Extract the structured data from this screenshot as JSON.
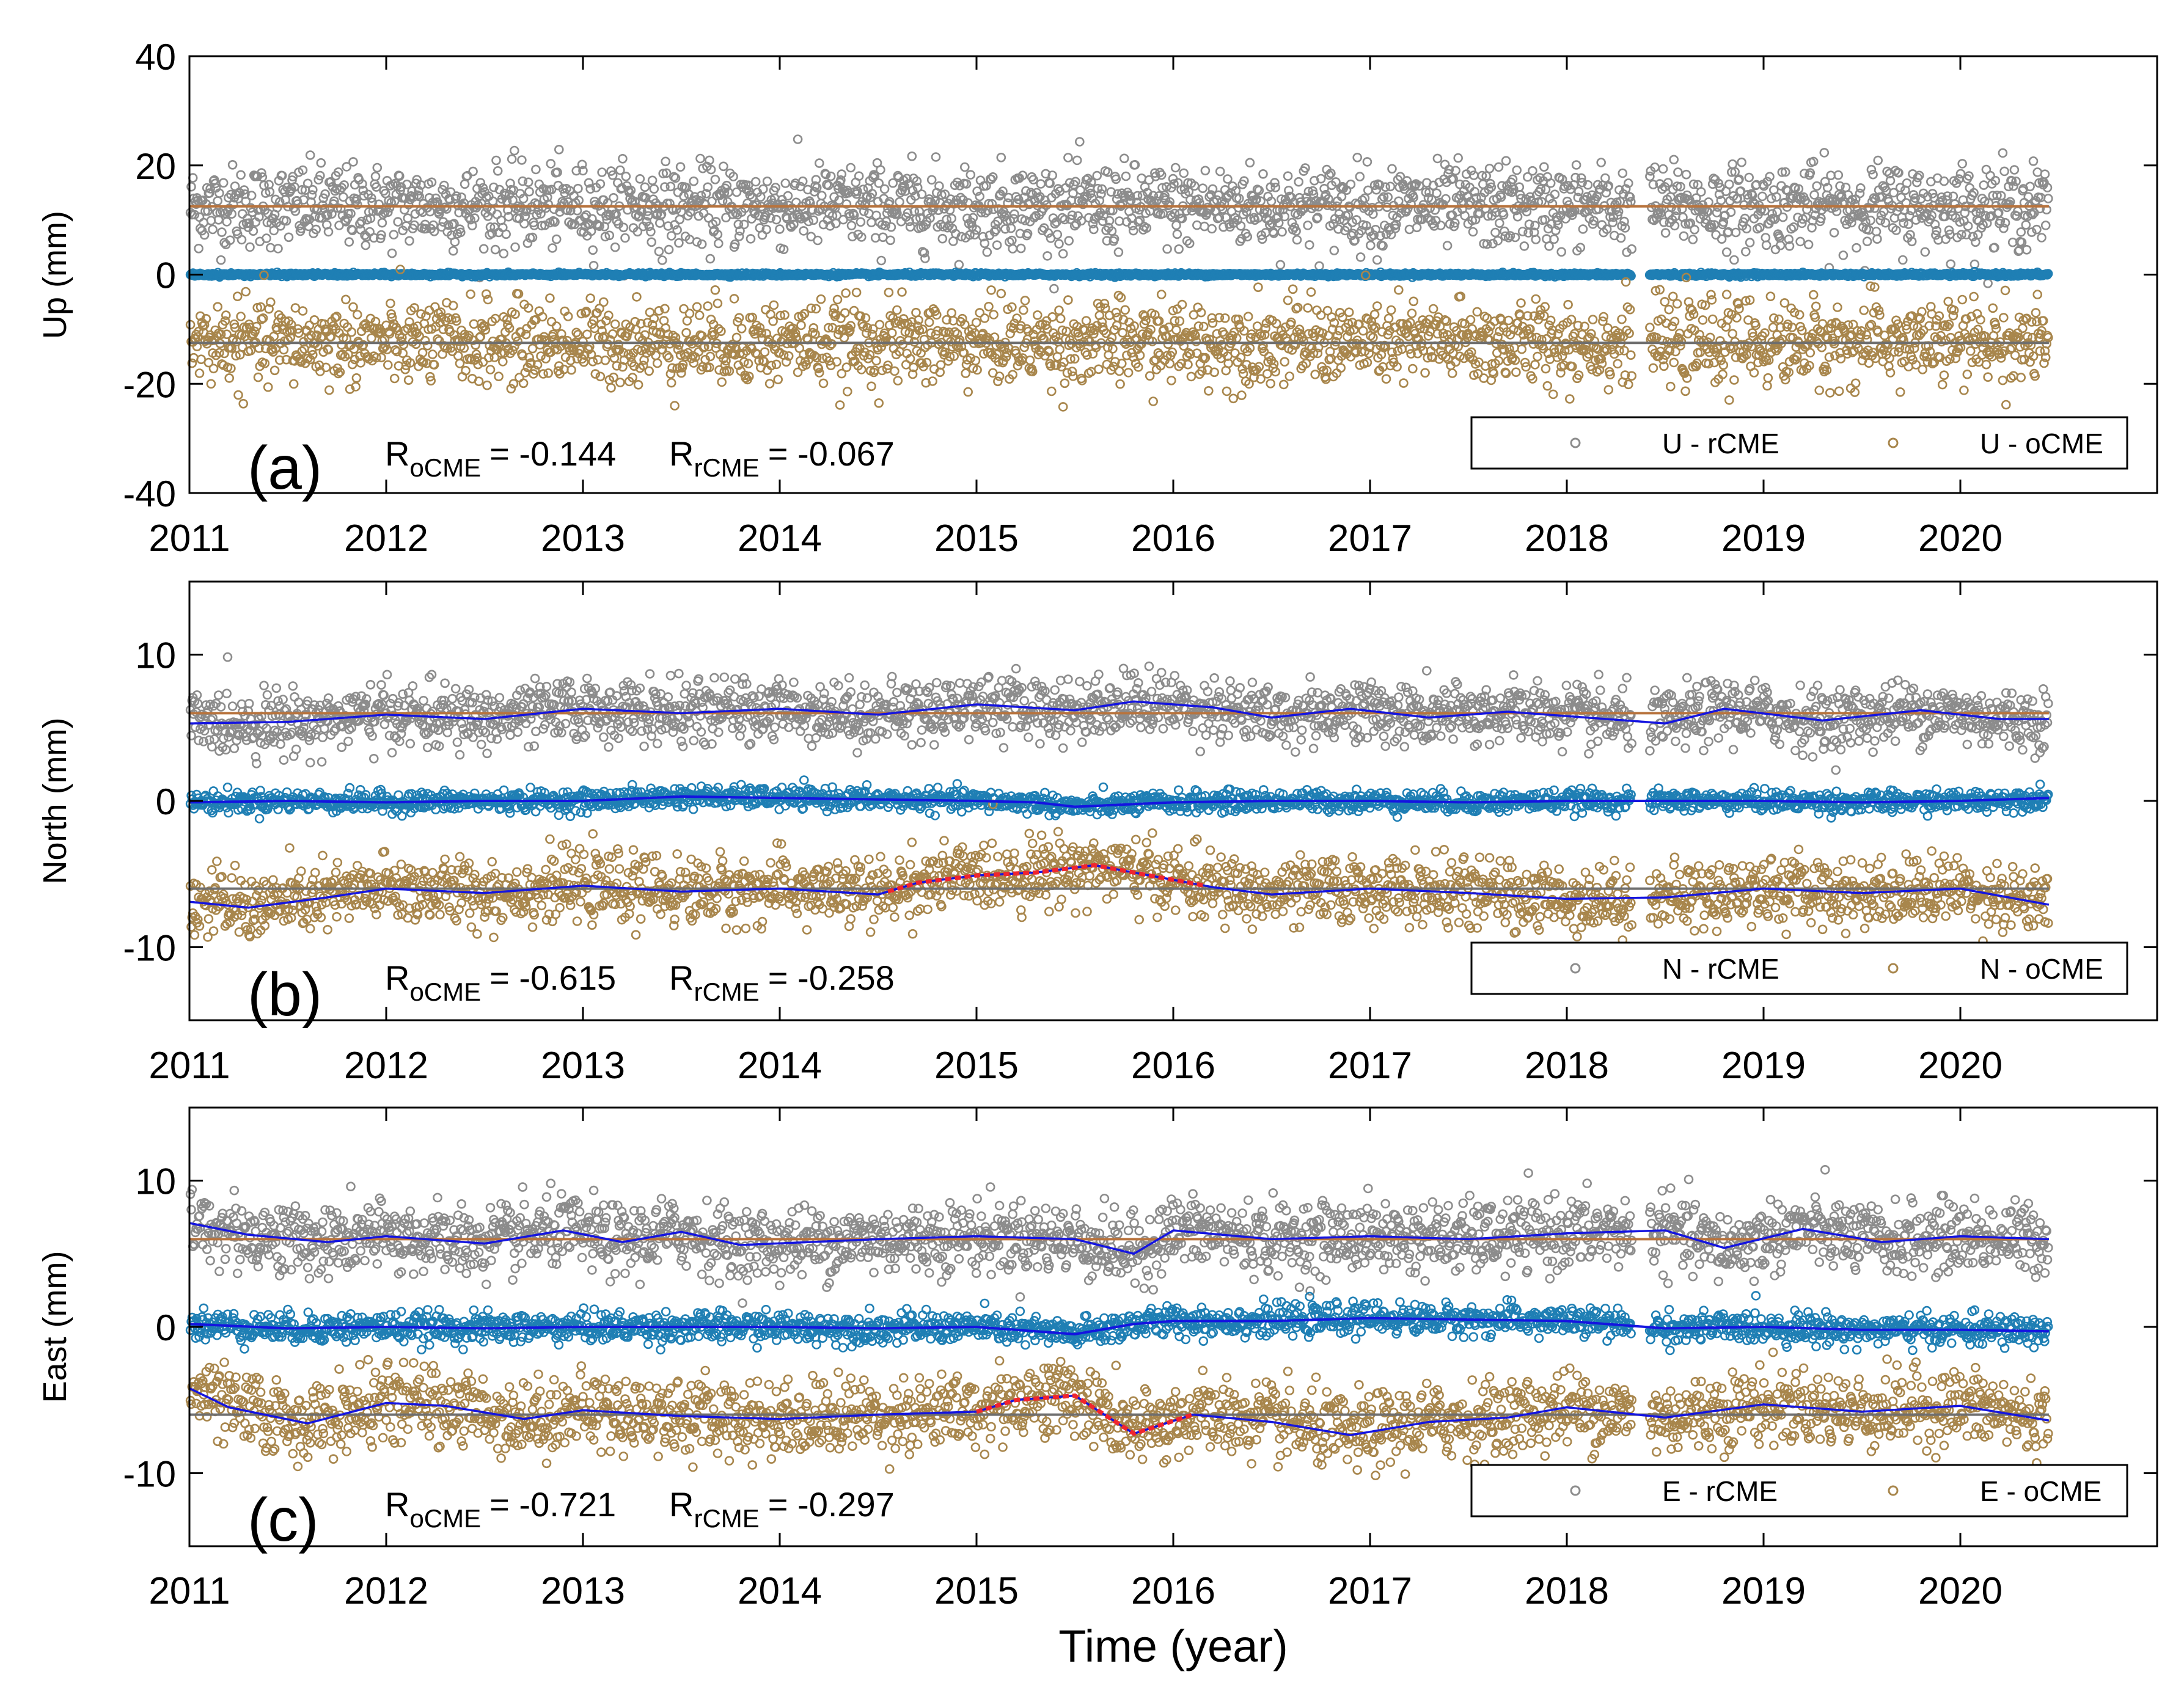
{
  "figure": {
    "xlabel": "Time (year)"
  },
  "colors": {
    "rcme": "#8c8c8c",
    "ocme": "#a8864c",
    "residual": "#1f7fb4",
    "fit": "#1414e0",
    "highlight": "#f0262e",
    "ref_upper": "#b8743e",
    "ref_lower": "#6e6e6e"
  },
  "chart_data": [
    {
      "type": "scatter",
      "panel": "(a)",
      "ylabel": "Up (mm)",
      "xlim": [
        2011,
        2021
      ],
      "ylim": [
        -40,
        40
      ],
      "xticks": [
        2011,
        2012,
        2013,
        2014,
        2015,
        2016,
        2017,
        2018,
        2019,
        2020
      ],
      "yticks": [
        40,
        20,
        0,
        -20,
        -40
      ],
      "gap": [
        2018.33,
        2018.42
      ],
      "stats": {
        "r_ocme_label": "R",
        "r_ocme_sub": "oCME",
        "r_ocme_value": "= -0.144",
        "r_rcme_label": "R",
        "r_rcme_sub": "rCME",
        "r_rcme_value": "= -0.067"
      },
      "legend": {
        "position": "bottom-right",
        "entries": [
          "U - rCME",
          "U - oCME"
        ]
      },
      "series": [
        {
          "name": "U - rCME",
          "center": 12.5,
          "spread": 5.0,
          "ref_line": 12.5
        },
        {
          "name": "residual",
          "center": 0,
          "spread": 0.15
        },
        {
          "name": "U - oCME",
          "center": -12.5,
          "spread": 5.0,
          "ref_line": -12.5
        }
      ],
      "fit_lines": false
    },
    {
      "type": "scatter",
      "panel": "(b)",
      "ylabel": "North (mm)",
      "xlim": [
        2011,
        2021
      ],
      "ylim": [
        -15,
        15
      ],
      "xticks": [
        2011,
        2012,
        2013,
        2014,
        2015,
        2016,
        2017,
        2018,
        2019,
        2020
      ],
      "yticks": [
        10,
        0,
        -10
      ],
      "gap": [
        2018.33,
        2018.42
      ],
      "stats": {
        "r_ocme_label": "R",
        "r_ocme_sub": "oCME",
        "r_ocme_value": "= -0.615",
        "r_rcme_label": "R",
        "r_rcme_sub": "rCME",
        "r_rcme_value": "= -0.258"
      },
      "legend": {
        "position": "bottom-right",
        "entries": [
          "N - rCME",
          "N - oCME"
        ]
      },
      "series": [
        {
          "name": "N - rCME",
          "center": 6,
          "spread": 1.4,
          "ref_line": 6,
          "fit": [
            [
              2011.0,
              5.3
            ],
            [
              2011.5,
              5.4
            ],
            [
              2012.0,
              5.9
            ],
            [
              2012.5,
              5.6
            ],
            [
              2013.0,
              6.3
            ],
            [
              2013.5,
              6.0
            ],
            [
              2014.0,
              6.3
            ],
            [
              2014.5,
              5.9
            ],
            [
              2015.0,
              6.6
            ],
            [
              2015.5,
              6.2
            ],
            [
              2015.8,
              6.8
            ],
            [
              2016.2,
              6.4
            ],
            [
              2016.5,
              5.7
            ],
            [
              2016.9,
              6.3
            ],
            [
              2017.3,
              5.7
            ],
            [
              2017.7,
              6.1
            ],
            [
              2018.1,
              5.7
            ],
            [
              2018.5,
              5.3
            ],
            [
              2018.8,
              6.3
            ],
            [
              2019.3,
              5.5
            ],
            [
              2019.8,
              6.2
            ],
            [
              2020.2,
              5.6
            ],
            [
              2020.45,
              5.6
            ]
          ]
        },
        {
          "name": "residual",
          "center": 0,
          "spread": 0.35,
          "fit": [
            [
              2011.0,
              -0.1
            ],
            [
              2011.5,
              0.0
            ],
            [
              2012.0,
              -0.1
            ],
            [
              2012.5,
              0.0
            ],
            [
              2013.0,
              0.0
            ],
            [
              2013.5,
              0.3
            ],
            [
              2014.0,
              0.2
            ],
            [
              2014.5,
              0.1
            ],
            [
              2015.0,
              0.0
            ],
            [
              2015.3,
              -0.1
            ],
            [
              2015.5,
              -0.4
            ],
            [
              2016.0,
              -0.1
            ],
            [
              2016.5,
              0.0
            ],
            [
              2017.0,
              0.0
            ],
            [
              2017.5,
              -0.1
            ],
            [
              2018.0,
              0.0
            ],
            [
              2018.5,
              0.0
            ],
            [
              2019.0,
              0.0
            ],
            [
              2019.5,
              -0.1
            ],
            [
              2020.0,
              0.0
            ],
            [
              2020.45,
              0.2
            ]
          ]
        },
        {
          "name": "N - oCME",
          "center": -6,
          "spread": 1.5,
          "ref_line": -6,
          "fit": [
            [
              2011.0,
              -6.9
            ],
            [
              2011.3,
              -7.3
            ],
            [
              2011.7,
              -6.6
            ],
            [
              2012.0,
              -6.0
            ],
            [
              2012.5,
              -6.3
            ],
            [
              2013.0,
              -5.8
            ],
            [
              2013.5,
              -6.2
            ],
            [
              2014.0,
              -6.0
            ],
            [
              2014.5,
              -6.4
            ],
            [
              2014.7,
              -5.6
            ],
            [
              2015.0,
              -5.1
            ],
            [
              2015.3,
              -4.9
            ],
            [
              2015.6,
              -4.4
            ],
            [
              2016.0,
              -5.4
            ],
            [
              2016.2,
              -5.9
            ],
            [
              2016.5,
              -6.4
            ],
            [
              2017.0,
              -6.0
            ],
            [
              2017.5,
              -6.3
            ],
            [
              2018.0,
              -6.7
            ],
            [
              2018.5,
              -6.6
            ],
            [
              2019.0,
              -6.0
            ],
            [
              2019.5,
              -6.3
            ],
            [
              2020.0,
              -6.0
            ],
            [
              2020.45,
              -7.1
            ]
          ],
          "highlight": [
            2014.55,
            2016.15
          ]
        }
      ],
      "fit_lines": true
    },
    {
      "type": "scatter",
      "panel": "(c)",
      "ylabel": "East (mm)",
      "xlim": [
        2011,
        2021
      ],
      "ylim": [
        -15,
        15
      ],
      "xticks": [
        2011,
        2012,
        2013,
        2014,
        2015,
        2016,
        2017,
        2018,
        2019,
        2020
      ],
      "yticks": [
        10,
        0,
        -10
      ],
      "gap": [
        2018.33,
        2018.42
      ],
      "stats": {
        "r_ocme_label": "R",
        "r_ocme_sub": "oCME",
        "r_ocme_value": "= -0.721",
        "r_rcme_label": "R",
        "r_rcme_sub": "rCME",
        "r_rcme_value": "= -0.297"
      },
      "legend": {
        "position": "bottom-right",
        "entries": [
          "E - rCME",
          "E - oCME"
        ]
      },
      "series": [
        {
          "name": "E - rCME",
          "center": 6,
          "spread": 1.6,
          "ref_line": 6,
          "fit": [
            [
              2011.0,
              7.1
            ],
            [
              2011.3,
              6.3
            ],
            [
              2011.7,
              5.8
            ],
            [
              2012.0,
              6.2
            ],
            [
              2012.5,
              5.7
            ],
            [
              2012.9,
              6.6
            ],
            [
              2013.2,
              5.8
            ],
            [
              2013.5,
              6.5
            ],
            [
              2013.8,
              5.6
            ],
            [
              2014.5,
              6.0
            ],
            [
              2015.0,
              6.2
            ],
            [
              2015.5,
              6.0
            ],
            [
              2015.8,
              5.0
            ],
            [
              2016.0,
              6.6
            ],
            [
              2016.5,
              6.0
            ],
            [
              2017.0,
              6.2
            ],
            [
              2017.5,
              6.0
            ],
            [
              2018.0,
              6.4
            ],
            [
              2018.5,
              6.6
            ],
            [
              2018.8,
              5.4
            ],
            [
              2019.2,
              6.7
            ],
            [
              2019.6,
              5.8
            ],
            [
              2020.0,
              6.2
            ],
            [
              2020.45,
              6.0
            ]
          ]
        },
        {
          "name": "residual",
          "center": 0,
          "spread": 0.5,
          "fit": [
            [
              2011.0,
              0.2
            ],
            [
              2011.5,
              -0.1
            ],
            [
              2012.0,
              0.0
            ],
            [
              2012.5,
              -0.1
            ],
            [
              2013.0,
              0.0
            ],
            [
              2013.5,
              0.0
            ],
            [
              2014.0,
              0.0
            ],
            [
              2014.5,
              -0.1
            ],
            [
              2015.0,
              0.0
            ],
            [
              2015.5,
              -0.5
            ],
            [
              2015.8,
              0.2
            ],
            [
              2016.0,
              0.4
            ],
            [
              2016.5,
              0.4
            ],
            [
              2017.0,
              0.6
            ],
            [
              2017.5,
              0.5
            ],
            [
              2018.0,
              0.4
            ],
            [
              2018.5,
              -0.1
            ],
            [
              2019.0,
              0.0
            ],
            [
              2019.5,
              -0.2
            ],
            [
              2020.0,
              -0.2
            ],
            [
              2020.45,
              -0.3
            ]
          ]
        },
        {
          "name": "E - oCME",
          "center": -6,
          "spread": 1.7,
          "ref_line": -6,
          "fit": [
            [
              2011.0,
              -4.2
            ],
            [
              2011.2,
              -5.5
            ],
            [
              2011.6,
              -6.6
            ],
            [
              2012.0,
              -5.2
            ],
            [
              2012.3,
              -5.4
            ],
            [
              2012.7,
              -6.3
            ],
            [
              2013.0,
              -5.7
            ],
            [
              2013.5,
              -6.1
            ],
            [
              2014.0,
              -6.3
            ],
            [
              2014.5,
              -6.0
            ],
            [
              2015.0,
              -5.8
            ],
            [
              2015.2,
              -5.0
            ],
            [
              2015.5,
              -4.7
            ],
            [
              2015.8,
              -7.3
            ],
            [
              2016.1,
              -6.0
            ],
            [
              2016.5,
              -6.5
            ],
            [
              2016.9,
              -7.4
            ],
            [
              2017.3,
              -6.5
            ],
            [
              2017.7,
              -6.2
            ],
            [
              2018.0,
              -5.5
            ],
            [
              2018.5,
              -6.2
            ],
            [
              2019.0,
              -5.3
            ],
            [
              2019.5,
              -5.8
            ],
            [
              2020.0,
              -5.4
            ],
            [
              2020.45,
              -6.4
            ]
          ],
          "highlight": [
            2015.0,
            2016.1
          ]
        }
      ],
      "fit_lines": true
    }
  ]
}
